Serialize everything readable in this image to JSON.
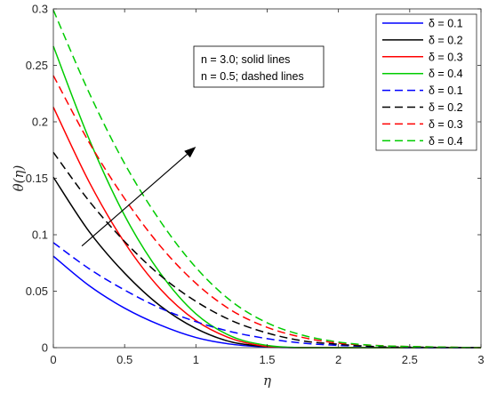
{
  "chart_data": {
    "type": "line",
    "xlabel": "η",
    "ylabel": "θ(η)",
    "xlim": [
      0,
      3
    ],
    "ylim": [
      0,
      0.3
    ],
    "x_ticks": [
      "0",
      "0.5",
      "1",
      "1.5",
      "2",
      "2.5",
      "3"
    ],
    "y_ticks": [
      "0",
      "0.05",
      "0.1",
      "0.15",
      "0.2",
      "0.25",
      "0.3"
    ],
    "grid": false,
    "legend_position": "top-right",
    "annotation_lines": [
      "n = 3.0; solid lines",
      "n = 0.5; dashed lines"
    ],
    "arrow": {
      "from": [
        0.2,
        0.09
      ],
      "to": [
        1.0,
        0.178
      ]
    },
    "series": [
      {
        "name": "δ = 0.1",
        "color": "#0000ff",
        "style": "solid",
        "x": [
          0,
          0.25,
          0.5,
          0.75,
          1.0,
          1.25,
          1.5,
          1.75,
          2.0,
          2.5,
          3.0
        ],
        "y": [
          0.081,
          0.055,
          0.035,
          0.02,
          0.009,
          0.003,
          0.0005,
          0,
          0,
          0,
          0
        ]
      },
      {
        "name": "δ = 0.2",
        "color": "#000000",
        "style": "solid",
        "x": [
          0,
          0.25,
          0.5,
          0.75,
          1.0,
          1.25,
          1.5,
          1.75,
          2.0,
          2.5,
          3.0
        ],
        "y": [
          0.151,
          0.103,
          0.066,
          0.037,
          0.017,
          0.005,
          0.001,
          0,
          0,
          0,
          0
        ]
      },
      {
        "name": "δ = 0.3",
        "color": "#ff0000",
        "style": "solid",
        "x": [
          0,
          0.25,
          0.5,
          0.75,
          1.0,
          1.25,
          1.5,
          1.75,
          2.0,
          2.5,
          3.0
        ],
        "y": [
          0.213,
          0.147,
          0.093,
          0.052,
          0.024,
          0.008,
          0.001,
          0,
          0,
          0,
          0
        ]
      },
      {
        "name": "δ = 0.4",
        "color": "#00cc00",
        "style": "solid",
        "x": [
          0,
          0.25,
          0.5,
          0.75,
          1.0,
          1.25,
          1.5,
          1.75,
          2.0,
          2.5,
          3.0
        ],
        "y": [
          0.267,
          0.185,
          0.117,
          0.066,
          0.03,
          0.01,
          0.002,
          0,
          0,
          0,
          0
        ]
      },
      {
        "name": "δ = 0.1",
        "color": "#0000ff",
        "style": "dashed",
        "x": [
          0,
          0.25,
          0.5,
          0.75,
          1.0,
          1.25,
          1.5,
          1.75,
          2.0,
          2.25,
          2.5,
          3.0
        ],
        "y": [
          0.093,
          0.07,
          0.051,
          0.035,
          0.023,
          0.014,
          0.008,
          0.004,
          0.002,
          0.001,
          0,
          0
        ]
      },
      {
        "name": "δ = 0.2",
        "color": "#000000",
        "style": "dashed",
        "x": [
          0,
          0.25,
          0.5,
          0.75,
          1.0,
          1.25,
          1.5,
          1.75,
          2.0,
          2.25,
          2.5,
          3.0
        ],
        "y": [
          0.173,
          0.13,
          0.094,
          0.064,
          0.041,
          0.024,
          0.013,
          0.006,
          0.003,
          0.001,
          0.0005,
          0
        ]
      },
      {
        "name": "δ = 0.3",
        "color": "#ff0000",
        "style": "dashed",
        "x": [
          0,
          0.25,
          0.5,
          0.75,
          1.0,
          1.25,
          1.5,
          1.75,
          2.0,
          2.25,
          2.5,
          3.0
        ],
        "y": [
          0.241,
          0.182,
          0.132,
          0.09,
          0.057,
          0.033,
          0.018,
          0.009,
          0.004,
          0.002,
          0.001,
          0
        ]
      },
      {
        "name": "δ = 0.4",
        "color": "#00cc00",
        "style": "dashed",
        "x": [
          0,
          0.25,
          0.5,
          0.75,
          1.0,
          1.25,
          1.5,
          1.75,
          2.0,
          2.25,
          2.5,
          3.0
        ],
        "y": [
          0.299,
          0.226,
          0.163,
          0.112,
          0.071,
          0.041,
          0.022,
          0.011,
          0.005,
          0.002,
          0.001,
          0
        ]
      }
    ]
  }
}
